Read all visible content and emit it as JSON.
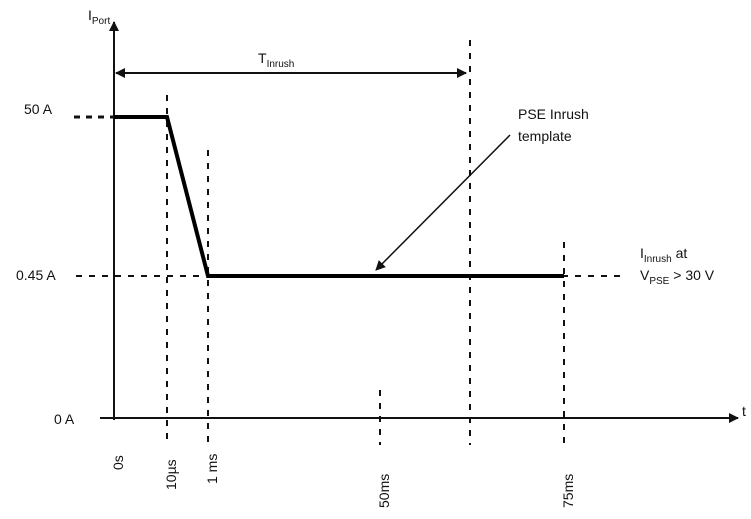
{
  "axes": {
    "y_label": {
      "main": "I",
      "sub": "Port"
    },
    "x_label": "t"
  },
  "y_ticks": [
    "50 A",
    "0.45 A",
    "0 A"
  ],
  "x_ticks": [
    "0s",
    "10µs",
    "1 ms",
    "50ms",
    "75ms"
  ],
  "t_inrush": {
    "main": "T",
    "sub": "Inrush"
  },
  "template_label": {
    "line1": "PSE Inrush",
    "line2": "template"
  },
  "inrush_label": {
    "line1_main": "I",
    "line1_sub": "Inrush",
    "line1_rest": " at",
    "line2_main": "V",
    "line2_sub": "PSE",
    "line2_rest": " > 30 V"
  }
}
